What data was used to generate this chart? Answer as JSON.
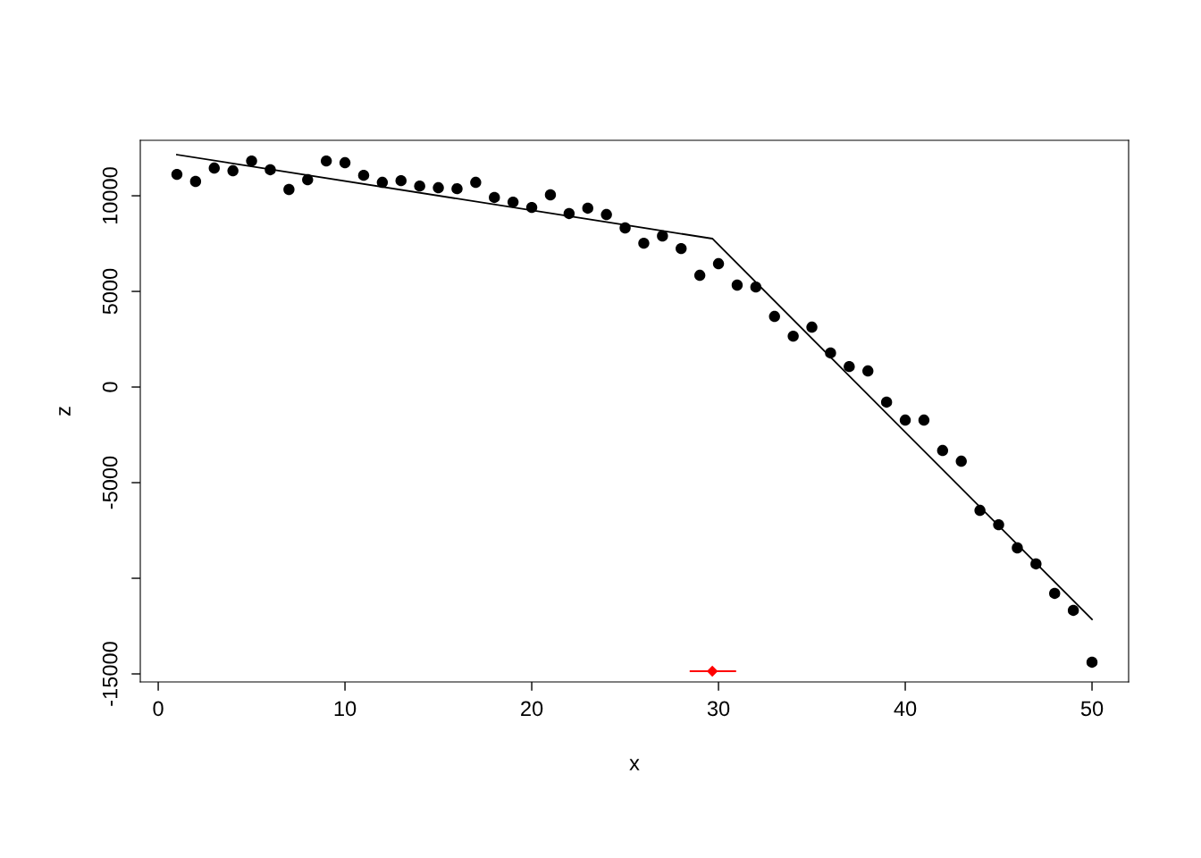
{
  "chart_data": {
    "type": "scatter",
    "xlabel": "x",
    "ylabel": "z",
    "xlim": [
      -0.96,
      51.96
    ],
    "ylim": [
      -15420,
      12900
    ],
    "xticks": [
      0,
      10,
      20,
      30,
      40,
      50
    ],
    "yticks": [
      {
        "value": -15000,
        "label": "-15000"
      },
      {
        "value": -10000,
        "label": null
      },
      {
        "value": -5000,
        "label": "-5000"
      },
      0,
      5000,
      10000
    ],
    "grid": false,
    "legend": false,
    "series": [
      {
        "color": "#000000",
        "marker": "circle",
        "x": [
          1,
          2,
          3,
          4,
          5,
          6,
          7,
          8,
          9,
          10,
          11,
          12,
          13,
          14,
          15,
          16,
          17,
          18,
          19,
          20,
          21,
          22,
          23,
          24,
          25,
          26,
          27,
          28,
          29,
          30,
          31,
          32,
          33,
          34,
          35,
          36,
          37,
          38,
          39,
          40,
          41,
          42,
          43,
          44,
          45,
          46,
          47,
          48,
          49,
          50
        ],
        "values": [
          11120,
          10750,
          11450,
          11310,
          11820,
          11360,
          10330,
          10840,
          11820,
          11730,
          11070,
          10700,
          10790,
          10510,
          10420,
          10370,
          10700,
          9910,
          9670,
          9390,
          10050,
          9070,
          9350,
          9020,
          8320,
          7520,
          7900,
          7240,
          5840,
          6450,
          5330,
          5230,
          3690,
          2660,
          3130,
          1780,
          1070,
          840,
          -790,
          -1730,
          -1730,
          -3320,
          -3880,
          -6450,
          -7200,
          -8410,
          -9250,
          -10790,
          -11680,
          -14390
        ]
      },
      {
        "type": "line",
        "color": "#000000",
        "marker": "none",
        "line_style": "solid",
        "x": [
          1,
          29.67,
          50
        ],
        "values": [
          12150,
          7760,
          -12150
        ]
      },
      {
        "type": "scatter",
        "color": "#ff0000",
        "marker": "diamond",
        "x": [
          29.67
        ],
        "values": [
          -14860
        ],
        "xerrors": [
          [
            28.5,
            30.9
          ]
        ]
      }
    ]
  }
}
